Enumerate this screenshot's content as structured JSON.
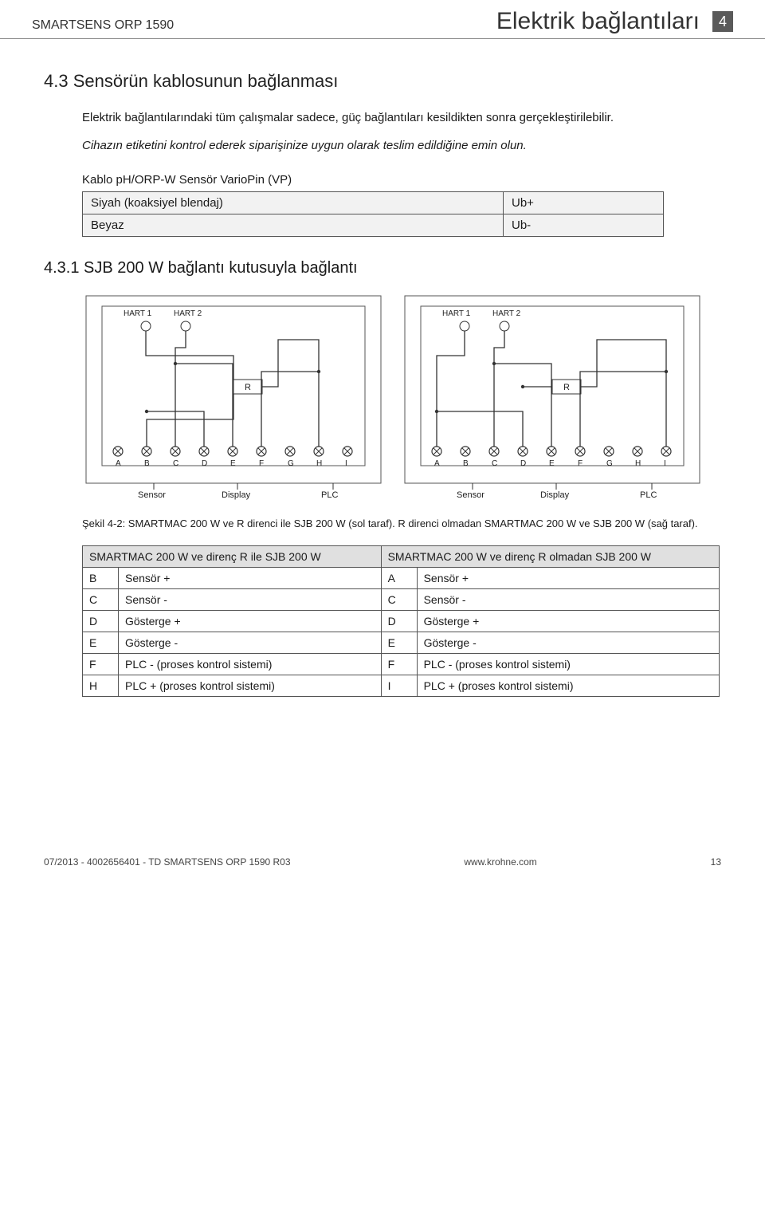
{
  "header": {
    "product": "SMARTSENS ORP 1590",
    "section_title": "Elektrik bağlantıları",
    "chapter_number": "4"
  },
  "section_4_3": {
    "number_title": "4.3  Sensörün kablosunun bağlanması",
    "para1": "Elektrik bağlantılarındaki tüm çalışmalar sadece, güç bağlantıları kesildikten sonra gerçekleştirilebilir.",
    "para2_italic": "Cihazın etiketini kontrol ederek siparişinize uygun olarak teslim edildiğine emin olun."
  },
  "cable_table": {
    "caption": "Kablo pH/ORP-W Sensör VarioPin (VP)",
    "rows": [
      {
        "left": "Siyah (koaksiyel blendaj)",
        "right": "Ub+"
      },
      {
        "left": "Beyaz",
        "right": "Ub-"
      }
    ]
  },
  "section_4_3_1": {
    "number_title": "4.3.1  SJB 200 W bağlantı kutusuyla bağlantı"
  },
  "diagram": {
    "labels": {
      "hart1": "HART 1",
      "hart2": "HART 2",
      "r": "R",
      "terminals": [
        "A",
        "B",
        "C",
        "D",
        "E",
        "F",
        "G",
        "H",
        "I"
      ],
      "sensor": "Sensor",
      "display": "Display",
      "plc": "PLC"
    },
    "colors": {
      "frame": "#555555",
      "line": "#333333",
      "hart_border": "#444444",
      "r_box": "#333333",
      "terminal_circle": "#333333",
      "terminal_text": "#222222",
      "role_text": "#222222",
      "bg": "#ffffff"
    },
    "caption": "Şekil 4-2:  SMARTMAC 200 W ve R direnci ile SJB 200 W (sol taraf). R direnci olmadan SMARTMAC 200 W ve SJB 200 W (sağ taraf)."
  },
  "pins_table": {
    "hdr_left": "SMARTMAC 200 W ve direnç R ile SJB 200 W",
    "hdr_right": "SMARTMAC 200 W ve direnç R olmadan SJB 200 W",
    "rows": [
      {
        "l_code": "B",
        "l_desc": "Sensör +",
        "r_code": "A",
        "r_desc": "Sensör +"
      },
      {
        "l_code": "C",
        "l_desc": "Sensör -",
        "r_code": "C",
        "r_desc": "Sensör -"
      },
      {
        "l_code": "D",
        "l_desc": "Gösterge +",
        "r_code": "D",
        "r_desc": "Gösterge +"
      },
      {
        "l_code": "E",
        "l_desc": "Gösterge -",
        "r_code": "E",
        "r_desc": "Gösterge -"
      },
      {
        "l_code": "F",
        "l_desc": "PLC - (proses kontrol sistemi)",
        "r_code": "F",
        "r_desc": "PLC - (proses kontrol sistemi)"
      },
      {
        "l_code": "H",
        "l_desc": "PLC + (proses kontrol sistemi)",
        "r_code": "I",
        "r_desc": "PLC + (proses kontrol sistemi)"
      }
    ]
  },
  "footer": {
    "left": "07/2013 - 4002656401 - TD SMARTSENS ORP 1590 R03",
    "center": "www.krohne.com",
    "page": "13"
  }
}
